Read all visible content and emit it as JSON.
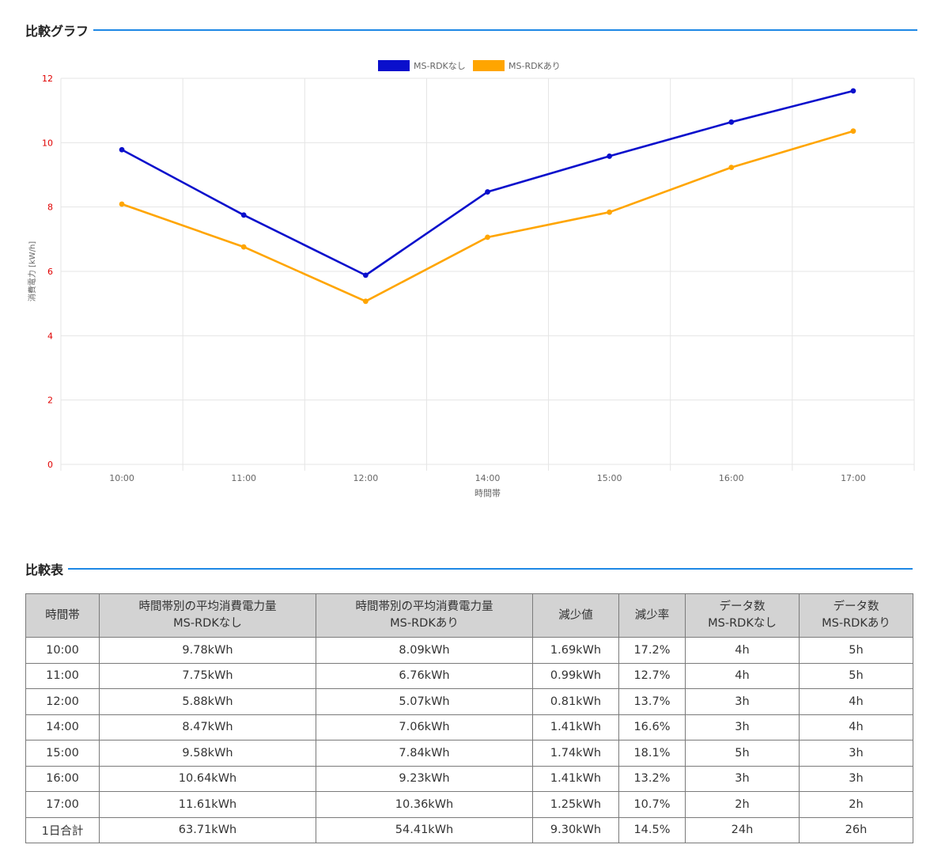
{
  "graph_heading": "比較グラフ",
  "table_heading": "比較表",
  "colors": {
    "series1": "#0a0fcc",
    "series2": "#ffa500",
    "accent": "#1e88e5",
    "ytick": "#e00000"
  },
  "chart_data": {
    "type": "line",
    "xlabel": "時間帯",
    "ylabel": "消費電力 [kW/h]",
    "categories": [
      "10:00",
      "11:00",
      "12:00",
      "14:00",
      "15:00",
      "16:00",
      "17:00"
    ],
    "ylim": [
      0,
      12
    ],
    "yticks": [
      0,
      2,
      4,
      6,
      8,
      10,
      12
    ],
    "grid": true,
    "legend": "top-center",
    "series": [
      {
        "name": "MS-RDKなし",
        "values": [
          9.78,
          7.75,
          5.88,
          8.47,
          9.58,
          10.64,
          11.61
        ]
      },
      {
        "name": "MS-RDKあり",
        "values": [
          8.09,
          6.76,
          5.07,
          7.06,
          7.84,
          9.23,
          10.36
        ]
      }
    ]
  },
  "table": {
    "headers": [
      {
        "l1": "時間帯",
        "l2": ""
      },
      {
        "l1": "時間帯別の平均消費電力量",
        "l2": "MS-RDKなし"
      },
      {
        "l1": "時間帯別の平均消費電力量",
        "l2": "MS-RDKあり"
      },
      {
        "l1": "減少値",
        "l2": ""
      },
      {
        "l1": "減少率",
        "l2": ""
      },
      {
        "l1": "データ数",
        "l2": "MS-RDKなし"
      },
      {
        "l1": "データ数",
        "l2": "MS-RDKあり"
      }
    ],
    "rows": [
      [
        "10:00",
        "9.78kWh",
        "8.09kWh",
        "1.69kWh",
        "17.2%",
        "4h",
        "5h"
      ],
      [
        "11:00",
        "7.75kWh",
        "6.76kWh",
        "0.99kWh",
        "12.7%",
        "4h",
        "5h"
      ],
      [
        "12:00",
        "5.88kWh",
        "5.07kWh",
        "0.81kWh",
        "13.7%",
        "3h",
        "4h"
      ],
      [
        "14:00",
        "8.47kWh",
        "7.06kWh",
        "1.41kWh",
        "16.6%",
        "3h",
        "4h"
      ],
      [
        "15:00",
        "9.58kWh",
        "7.84kWh",
        "1.74kWh",
        "18.1%",
        "5h",
        "3h"
      ],
      [
        "16:00",
        "10.64kWh",
        "9.23kWh",
        "1.41kWh",
        "13.2%",
        "3h",
        "3h"
      ],
      [
        "17:00",
        "11.61kWh",
        "10.36kWh",
        "1.25kWh",
        "10.7%",
        "2h",
        "2h"
      ],
      [
        "1日合計",
        "63.71kWh",
        "54.41kWh",
        "9.30kWh",
        "14.5%",
        "24h",
        "26h"
      ]
    ]
  }
}
